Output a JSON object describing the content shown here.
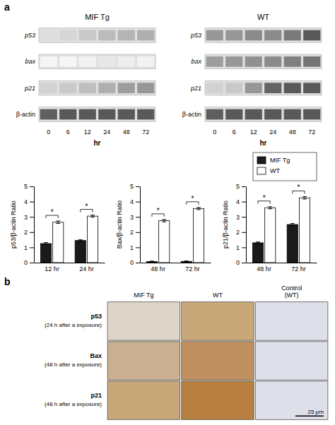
{
  "chart_data": [
    {
      "type": "heatmap",
      "title": "MIF Tg",
      "categories": [
        "0",
        "6",
        "12",
        "24",
        "48",
        "72"
      ],
      "rows": [
        "p53",
        "bax",
        "p21",
        "β-actin"
      ],
      "cells": [
        [
          0.22,
          0.26,
          0.32,
          0.37,
          0.4,
          0.42
        ],
        [
          0.08,
          0.08,
          0.1,
          0.17,
          0.13,
          0.1
        ],
        [
          0.28,
          0.32,
          0.36,
          0.42,
          0.48,
          0.5
        ],
        [
          0.7,
          0.72,
          0.72,
          0.72,
          0.72,
          0.72
        ]
      ],
      "xlabel": "hr",
      "annotations": [
        "a"
      ]
    },
    {
      "type": "heatmap",
      "title": "WT",
      "categories": [
        "0",
        "6",
        "12",
        "24",
        "48",
        "72"
      ],
      "rows": [
        "p53",
        "bax",
        "p21",
        "β-actin"
      ],
      "cells": [
        [
          0.5,
          0.5,
          0.54,
          0.54,
          0.6,
          0.72
        ],
        [
          0.48,
          0.5,
          0.52,
          0.54,
          0.58,
          0.62
        ],
        [
          0.28,
          0.32,
          0.5,
          0.68,
          0.72,
          0.72
        ],
        [
          0.7,
          0.72,
          0.72,
          0.72,
          0.72,
          0.72
        ]
      ],
      "xlabel": "hr"
    },
    {
      "type": "bar",
      "categories": [
        "12 hr",
        "24 hr"
      ],
      "series": [
        {
          "name": "MIF Tg",
          "color": "#1a1a1a",
          "values": [
            1.25,
            1.45
          ],
          "errors": [
            0.07,
            0.05
          ]
        },
        {
          "name": "WT",
          "color": "#ffffff",
          "values": [
            2.65,
            3.05
          ],
          "errors": [
            0.08,
            0.07
          ]
        }
      ],
      "ylabel": "p53/β-actin Ratio",
      "ylim": [
        0,
        5
      ],
      "yticks": [
        0,
        1,
        2,
        3,
        4,
        5
      ],
      "annotations": [
        "*",
        "*"
      ]
    },
    {
      "type": "bar",
      "categories": [
        "48 hr",
        "72 hr"
      ],
      "series": [
        {
          "name": "MIF Tg",
          "color": "#1a1a1a",
          "values": [
            0.07,
            0.08
          ],
          "errors": [
            0.03,
            0.03
          ]
        },
        {
          "name": "WT",
          "color": "#ffffff",
          "values": [
            2.75,
            3.55
          ],
          "errors": [
            0.08,
            0.07
          ]
        }
      ],
      "ylabel": "Bax/β-actin Ratio",
      "ylim": [
        0,
        5
      ],
      "yticks": [
        0,
        1,
        2,
        3,
        4,
        5
      ],
      "annotations": [
        "*",
        "*"
      ]
    },
    {
      "type": "bar",
      "categories": [
        "48 hr",
        "72 hr"
      ],
      "series": [
        {
          "name": "MIF Tg",
          "color": "#1a1a1a",
          "values": [
            1.3,
            2.5
          ],
          "errors": [
            0.06,
            0.07
          ]
        },
        {
          "name": "WT",
          "color": "#ffffff",
          "values": [
            3.6,
            4.25
          ],
          "errors": [
            0.07,
            0.08
          ]
        }
      ],
      "ylabel": "p21/β-actin Ratio",
      "ylim": [
        0,
        5
      ],
      "yticks": [
        0,
        1,
        2,
        3,
        4,
        5
      ],
      "annotations": [
        "*",
        "*"
      ],
      "legend": "upper right"
    },
    {
      "type": "grid",
      "columns": [
        "MIF Tg",
        "WT",
        "Control\n(WT)"
      ],
      "rows": [
        "p53\n(24 h after a exposure)",
        "Bax\n(48 h after a exposure)",
        "p21\n(48 h after a exposure)"
      ],
      "colors": [
        [
          "#ddd5c8",
          "#c8a878",
          "#dde0e8"
        ],
        [
          "#c8b090",
          "#c09060",
          "#dde0e8"
        ],
        [
          "#c8a878",
          "#b88040",
          "#dde0e8"
        ]
      ],
      "annotations": [
        "b",
        "25 μm"
      ]
    }
  ]
}
